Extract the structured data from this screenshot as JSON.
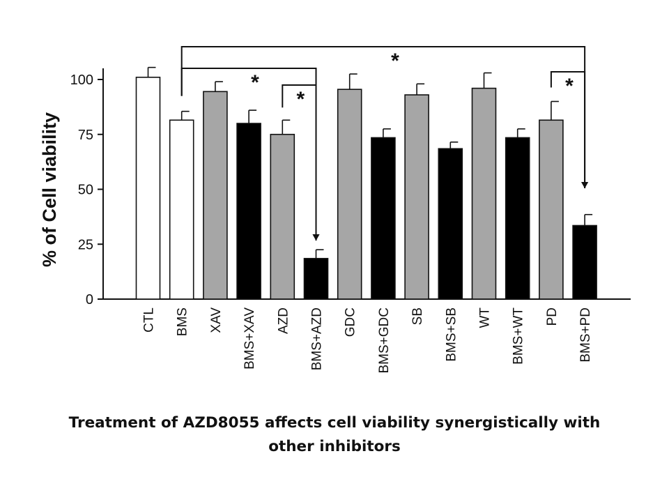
{
  "chart_data": {
    "type": "bar",
    "title": "",
    "xlabel": "",
    "ylabel": "% of Cell viability",
    "ylim": [
      0,
      100
    ],
    "yticks": [
      "0",
      "25",
      "50",
      "75",
      "100"
    ],
    "categories": [
      "CTL",
      "BMS",
      "XAV",
      "BMS+XAV",
      "AZD",
      "BMS+AZD",
      "GDC",
      "BMS+GDC",
      "SB",
      "BMS+SB",
      "WT",
      "BMS+WT",
      "PD",
      "BMS+PD"
    ],
    "values": [
      101,
      81.5,
      94.5,
      80,
      75,
      18.5,
      95.5,
      73.5,
      93,
      68.5,
      96,
      73.5,
      81.5,
      33.5
    ],
    "errors": [
      4.5,
      4,
      4.5,
      6,
      6.5,
      4,
      7,
      4,
      5,
      3,
      7,
      4,
      8.5,
      5
    ],
    "bar_colors": [
      "#ffffff",
      "#ffffff",
      "#a6a6a6",
      "#000000",
      "#a6a6a6",
      "#000000",
      "#a6a6a6",
      "#000000",
      "#a6a6a6",
      "#000000",
      "#a6a6a6",
      "#000000",
      "#a6a6a6",
      "#000000"
    ],
    "significance": [
      {
        "from": "BMS",
        "to": "BMS+PD",
        "label": "*"
      },
      {
        "from": "BMS",
        "to": "BMS+AZD",
        "label": "*"
      },
      {
        "from": "AZD",
        "to": "BMS+AZD",
        "label": "*"
      },
      {
        "from": "PD",
        "to": "BMS+PD",
        "label": "*"
      }
    ],
    "grid": false,
    "legend": "none"
  },
  "caption": {
    "line1": "Treatment of AZD8055 affects cell viability synergistically with",
    "line2": "other inhibitors"
  }
}
